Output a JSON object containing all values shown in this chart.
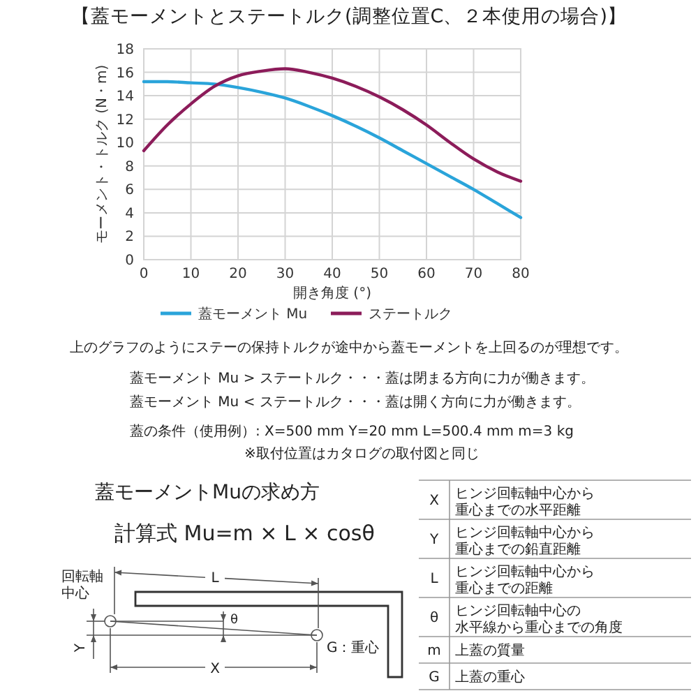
{
  "chart_data": {
    "type": "line",
    "title": "【蓋モーメントとステートルク(調整位置C、２本使用の場合)】",
    "xlabel": "開き角度 (°)",
    "ylabel": "モーメント・トルク (N・m)",
    "x": [
      0,
      5,
      10,
      15,
      20,
      25,
      30,
      35,
      40,
      45,
      50,
      55,
      60,
      65,
      70,
      75,
      80
    ],
    "series": [
      {
        "name": "蓋モーメント Mu",
        "color": "#2aa4da",
        "values": [
          15.2,
          15.2,
          15.1,
          15.0,
          14.7,
          14.3,
          13.8,
          13.1,
          12.3,
          11.4,
          10.4,
          9.3,
          8.2,
          7.1,
          6.0,
          4.8,
          3.6
        ]
      },
      {
        "name": "ステートルク",
        "color": "#8c1c5a",
        "values": [
          9.3,
          11.5,
          13.3,
          14.8,
          15.7,
          16.1,
          16.3,
          16.0,
          15.5,
          14.8,
          13.9,
          12.8,
          11.5,
          10.0,
          8.6,
          7.5,
          6.7
        ]
      }
    ],
    "xlim": [
      0,
      80
    ],
    "xticks": [
      0,
      10,
      20,
      30,
      40,
      50,
      60,
      70,
      80
    ],
    "ylim": [
      0,
      18
    ],
    "yticks": [
      0,
      2,
      4,
      6,
      8,
      10,
      12,
      14,
      16,
      18
    ],
    "grid": true,
    "legend": "bottom",
    "annotations": [
      "上のグラフのようにステーの保持トルクが途中から蓋モーメントを上回るのが理想です。",
      "蓋モーメント Mu > ステートルク・・・蓋は閉まる方向に力が働きます。",
      "蓋モーメント Mu < ステートルク・・・蓋は開く方向に力が働きます。",
      "蓋の条件（使用例）: X=500 mm Y=20 mm L=500.4 mm m=3 kg",
      "※取付位置はカタログの取付図と同じ",
      "蓋モーメントMuの求め方",
      "計算式 Mu=m × L × cosθ",
      "回転軸",
      "中心",
      "L",
      "θ",
      "Y",
      "G：重心",
      "X",
      "X",
      "ヒンジ回転軸中心から",
      "重心までの水平距離",
      "Y",
      "ヒンジ回転軸中心から",
      "重心までの鉛直距離",
      "L",
      "ヒンジ回転軸中心から",
      "重心までの距離",
      "θ",
      "ヒンジ回転軸中心の",
      "水平線から重心までの角度",
      "m",
      "上蓋の質量",
      "G",
      "上蓋の重心"
    ]
  }
}
